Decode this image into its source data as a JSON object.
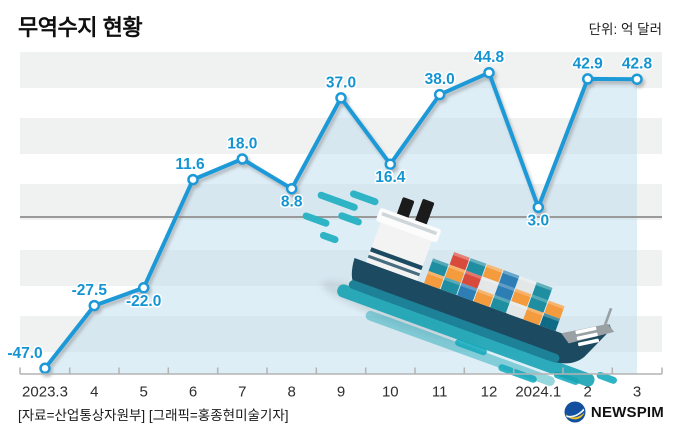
{
  "header": {
    "title": "무역수지 현황",
    "unit_label": "단위: 억 달러"
  },
  "chart_data": {
    "type": "line",
    "title": "무역수지 현황",
    "unit": "억 달러",
    "categories": [
      "2023.3",
      "4",
      "5",
      "6",
      "7",
      "8",
      "9",
      "10",
      "11",
      "12",
      "2024.1",
      "2",
      "3"
    ],
    "values": [
      -47.0,
      -27.5,
      -22.0,
      11.6,
      18.0,
      8.8,
      37.0,
      16.4,
      38.0,
      44.8,
      3.0,
      42.9,
      42.8
    ],
    "label_positions": [
      "above",
      "above",
      "below",
      "above",
      "above",
      "below",
      "above",
      "below",
      "above",
      "above",
      "below",
      "above",
      "above"
    ],
    "label_dx": [
      -20,
      -5,
      0,
      -3,
      0,
      0,
      0,
      0,
      0,
      0,
      0,
      0,
      0
    ],
    "ylim": [
      -49,
      51
    ],
    "zero_line": true,
    "area_fill": true,
    "grid": "horizontal-bands",
    "legend": "none"
  },
  "footer": {
    "source": "[자료=산업통상자원부] [그래픽=홍종현미술기자]",
    "brand": "NEWSPIM"
  },
  "colors": {
    "line": "#1b9ad8",
    "marker_fill": "#ffffff",
    "data_label": "#1495d2",
    "area_fill": "rgba(187,221,239,0.5)",
    "band": "#f0f1f1",
    "zero_line": "#9a9a9a",
    "axis": "#b3b3b3",
    "tick_label": "#2e2e2e",
    "title": "#0f0f0f",
    "brand_navy": "#124f9e",
    "brand_yellow": "#f3c118"
  },
  "illustration": {
    "name": "container-ship",
    "hull": "#1c4b61",
    "waterline": "#1d8297",
    "reflection": "#17a3b4",
    "dashes": "#2fb4c6",
    "containers": [
      "#f49b3d",
      "#1e8ea0",
      "#d84a3c",
      "#2d7eb4",
      "#e3e7e8",
      "#0f6a85"
    ]
  }
}
